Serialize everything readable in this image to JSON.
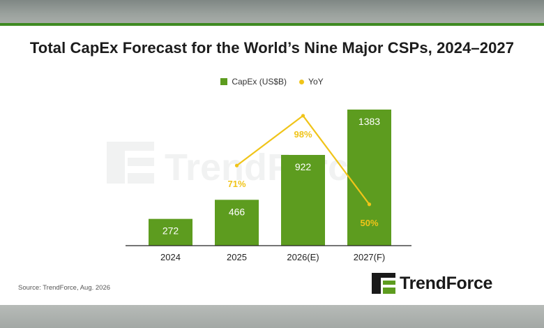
{
  "header": {
    "title": "Total CapEx Forecast for the World’s Nine Major CSPs, 2024–2027"
  },
  "legend": {
    "bar_label": "CapEx (US$B)",
    "line_label": "YoY"
  },
  "chart_data": {
    "type": "bar",
    "title": "Total CapEx Forecast for the World’s Nine Major CSPs, 2024–2027",
    "categories": [
      "2024",
      "2025",
      "2026(E)",
      "2027(F)"
    ],
    "series": [
      {
        "name": "CapEx (US$B)",
        "type": "bar",
        "values": [
          272,
          466,
          922,
          1383
        ],
        "labels": [
          "272",
          "466",
          "922",
          "1383"
        ]
      },
      {
        "name": "YoY",
        "type": "line",
        "values": [
          null,
          71,
          98,
          50
        ],
        "labels": [
          "",
          "71%",
          "98%",
          "50%"
        ]
      }
    ],
    "legend_position": "top",
    "grid": false,
    "colors": {
      "bar": "#5d9c1f",
      "line": "#f0c419",
      "bar_label": "#ffffff"
    }
  },
  "footer": {
    "source": "Source: TrendForce, Aug. 2026",
    "brand": "TrendForce",
    "watermark": "TrendForce"
  }
}
